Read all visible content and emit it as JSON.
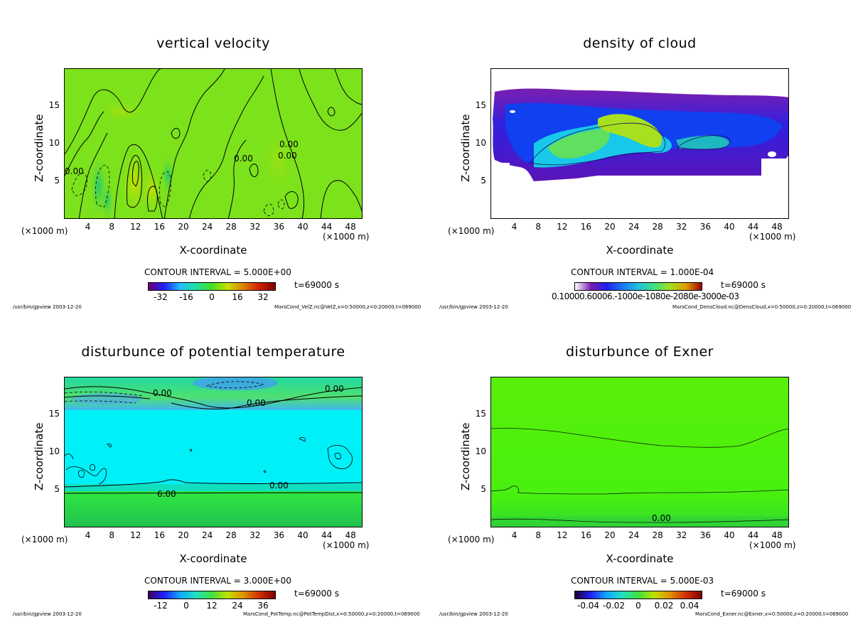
{
  "footer_left": "/usr/bin/gpview  2003-12-20",
  "chart_data": [
    {
      "type": "heatmap",
      "title": "vertical velocity",
      "xlabel": "X-coordinate",
      "ylabel": "Z-coordinate",
      "x_unit": "(×1000 m)",
      "x_unit_right": "(×1000 m)",
      "xlim": [
        0,
        50
      ],
      "ylim": [
        0,
        20
      ],
      "xticks": [
        "4",
        "8",
        "12",
        "16",
        "20",
        "24",
        "28",
        "32",
        "36",
        "40",
        "44",
        "48"
      ],
      "yticks": [
        "5",
        "10",
        "15"
      ],
      "contour_interval": "CONTOUR INTERVAL = 5.000E+00",
      "colorbar_ticks": [
        "-32",
        "-16",
        "0",
        "16",
        "32"
      ],
      "colorbar_range": [
        -40,
        40
      ],
      "contour_labels": [
        "0.00",
        "0.00",
        "0.00",
        "0.00"
      ],
      "time": "t=69000 s",
      "footer_right": "MarsCond_VelZ.nc@VelZ,x=0:50000,z=0:20000,t=069000"
    },
    {
      "type": "heatmap",
      "title": "density of cloud",
      "xlabel": "X-coordinate",
      "ylabel": "Z-coordinate",
      "x_unit": "(×1000 m)",
      "x_unit_right": "(×1000 m)",
      "xlim": [
        0,
        50
      ],
      "ylim": [
        0,
        20
      ],
      "xticks": [
        "4",
        "8",
        "12",
        "16",
        "20",
        "24",
        "28",
        "32",
        "36",
        "40",
        "44",
        "48"
      ],
      "yticks": [
        "5",
        "10",
        "15"
      ],
      "contour_interval": "CONTOUR INTERVAL = 1.000E-04",
      "colorbar_ticks_text": "0.10000.60006.-1000e-1080e-2080e-3000e-03",
      "time": "t=69000 s",
      "footer_right": "MarsCond_DensCloud.nc@DensCloud,x=0:50000,z=0:20000,t=069000"
    },
    {
      "type": "heatmap",
      "title": "disturbunce of potential temperature",
      "xlabel": "X-coordinate",
      "ylabel": "Z-coordinate",
      "x_unit": "(×1000 m)",
      "x_unit_right": "(×1000 m)",
      "xlim": [
        0,
        50
      ],
      "ylim": [
        0,
        20
      ],
      "xticks": [
        "4",
        "8",
        "12",
        "16",
        "20",
        "24",
        "28",
        "32",
        "36",
        "40",
        "44",
        "48"
      ],
      "yticks": [
        "5",
        "10",
        "15"
      ],
      "contour_interval": "CONTOUR INTERVAL = 3.000E+00",
      "colorbar_ticks": [
        "-12",
        "0",
        "12",
        "24",
        "36"
      ],
      "colorbar_range": [
        -18,
        42
      ],
      "contour_labels": [
        "0.00",
        "0.00",
        "0.00",
        "0.00",
        "6.00"
      ],
      "time": "t=69000 s",
      "footer_right": "MarsCond_PotTemp.nc@PotTempDist,x=0:50000,z=0:20000,t=069000"
    },
    {
      "type": "heatmap",
      "title": "disturbunce of Exner",
      "xlabel": "X-coordinate",
      "ylabel": "Z-coordinate",
      "x_unit": "(×1000 m)",
      "x_unit_right": "(×1000 m)",
      "xlim": [
        0,
        50
      ],
      "ylim": [
        0,
        20
      ],
      "xticks": [
        "4",
        "8",
        "12",
        "16",
        "20",
        "24",
        "28",
        "32",
        "36",
        "40",
        "44",
        "48"
      ],
      "yticks": [
        "5",
        "10",
        "15"
      ],
      "contour_interval": "CONTOUR INTERVAL = 5.000E-03",
      "colorbar_ticks": [
        "-0.04",
        "-0.02",
        "0",
        "0.02",
        "0.04"
      ],
      "colorbar_range": [
        -0.05,
        0.05
      ],
      "contour_labels": [
        "0.00"
      ],
      "time": "t=69000 s",
      "footer_right": "MarsCond_Exner.nc@Exner,x=0:50000,z=0:20000,t=069000"
    }
  ]
}
